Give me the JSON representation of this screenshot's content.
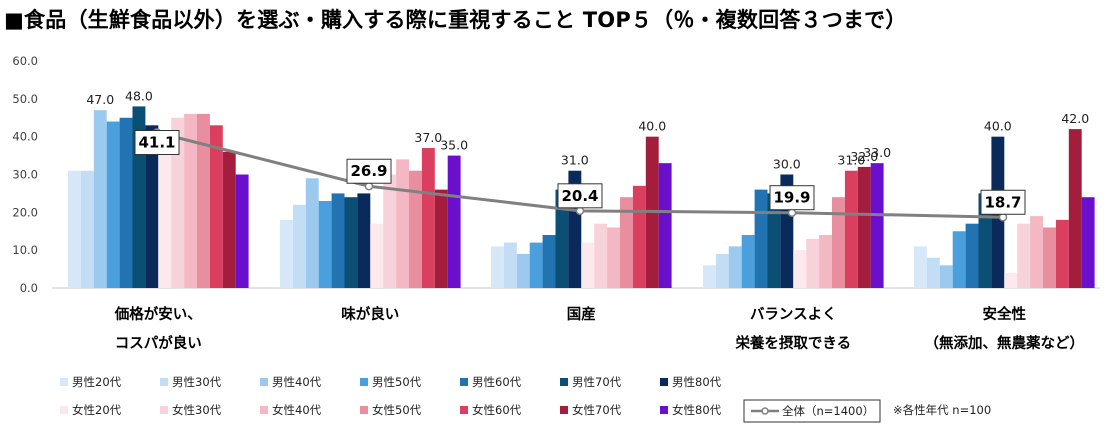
{
  "chart_data": {
    "type": "bar",
    "title": "■食品（生鮮食品以外）を選ぶ・購入する際に重視すること TOP５（％・複数回答３つまで）",
    "ylim": [
      0,
      60
    ],
    "yticks": [
      "0.0",
      "10.0",
      "20.0",
      "30.0",
      "40.0",
      "50.0",
      "60.0"
    ],
    "categories": [
      [
        "価格が安い、",
        "コスパが良い"
      ],
      [
        "味が良い"
      ],
      [
        "国産"
      ],
      [
        "バランスよく",
        "栄養を摂取できる"
      ],
      [
        "安全性",
        "（無添加、無農薬など）"
      ]
    ],
    "series": [
      {
        "name": "男性20代",
        "color": "#d6e8f8",
        "values": [
          31,
          18,
          11,
          6,
          11
        ]
      },
      {
        "name": "男性30代",
        "color": "#c3def4",
        "values": [
          31,
          22,
          12,
          9,
          8
        ]
      },
      {
        "name": "男性40代",
        "color": "#9ccaee",
        "values": [
          47,
          29,
          9,
          11,
          6
        ]
      },
      {
        "name": "男性50代",
        "color": "#4b9fdd",
        "values": [
          44,
          23,
          12,
          14,
          15
        ]
      },
      {
        "name": "男性60代",
        "color": "#2173b2",
        "values": [
          45,
          25,
          14,
          26,
          17
        ]
      },
      {
        "name": "男性70代",
        "color": "#0c4f74",
        "values": [
          48,
          24,
          26,
          25,
          25
        ]
      },
      {
        "name": "男性80代",
        "color": "#0b2a5c",
        "values": [
          43,
          25,
          31,
          30,
          40
        ]
      },
      {
        "name": "女性20代",
        "color": "#fce9ee",
        "values": [
          36,
          17,
          12,
          10,
          4
        ]
      },
      {
        "name": "女性30代",
        "color": "#f8d2da",
        "values": [
          45,
          30,
          17,
          13,
          17
        ]
      },
      {
        "name": "女性40代",
        "color": "#f3b8c4",
        "values": [
          46,
          34,
          16,
          14,
          19
        ]
      },
      {
        "name": "女性50代",
        "color": "#e98e9f",
        "values": [
          46,
          31,
          24,
          24,
          16
        ]
      },
      {
        "name": "女性60代",
        "color": "#db3f5f",
        "values": [
          43,
          37,
          27,
          31,
          18
        ]
      },
      {
        "name": "女性70代",
        "color": "#a31d3c",
        "values": [
          36,
          26,
          40,
          32,
          42
        ]
      },
      {
        "name": "女性80代",
        "color": "#6a10cc",
        "values": [
          30,
          35,
          33,
          33,
          24
        ]
      }
    ],
    "bar_labels": [
      {
        "series": "男性40代",
        "category": 0,
        "text": "47.0"
      },
      {
        "series": "男性70代",
        "category": 0,
        "text": "48.0"
      },
      {
        "series": "女性60代",
        "category": 1,
        "text": "37.0"
      },
      {
        "series": "女性80代",
        "category": 1,
        "text": "35.0"
      },
      {
        "series": "男性80代",
        "category": 2,
        "text": "31.0"
      },
      {
        "series": "女性70代",
        "category": 2,
        "text": "40.0"
      },
      {
        "series": "男性80代",
        "category": 3,
        "text": "30.0"
      },
      {
        "series": "女性60代",
        "category": 3,
        "text": "31.0"
      },
      {
        "series": "女性70代",
        "category": 3,
        "text": "32.0"
      },
      {
        "series": "女性80代",
        "category": 3,
        "text": "33.0"
      },
      {
        "series": "男性80代",
        "category": 4,
        "text": "40.0"
      },
      {
        "series": "女性70代",
        "category": 4,
        "text": "42.0"
      }
    ],
    "overall_line": {
      "name": "全体（n=1400）",
      "color": "#808080",
      "values": [
        41.1,
        26.9,
        20.4,
        19.9,
        18.7
      ],
      "labels": [
        "41.1",
        "26.9",
        "20.4",
        "19.9",
        "18.7"
      ]
    },
    "legend_position": "bottom",
    "note": "※各性年代 n=100"
  }
}
